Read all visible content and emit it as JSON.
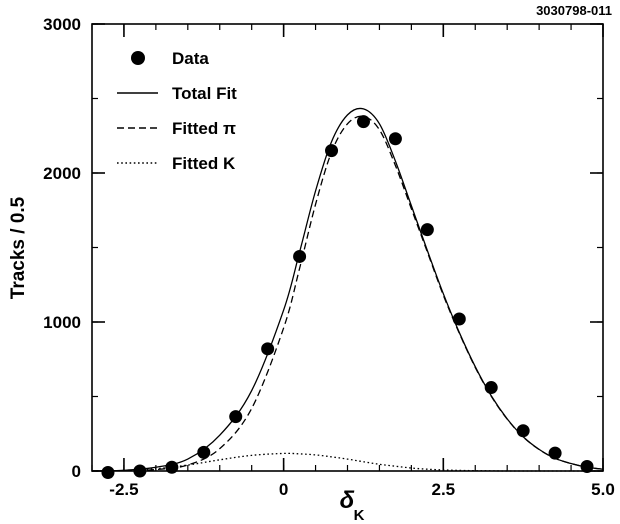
{
  "chart_data": {
    "type": "scatter",
    "figure_id": "3030798-011",
    "ylabel": "Tracks / 0.5",
    "xlabel_main": "δ",
    "xlabel_sub": "K",
    "xlim": [
      -3.0,
      5.0
    ],
    "ylim": [
      0,
      3000
    ],
    "x_ticks": [
      {
        "value": -2.5,
        "label": "-2.5"
      },
      {
        "value": 0.0,
        "label": "0"
      },
      {
        "value": 2.5,
        "label": "2.5"
      },
      {
        "value": 5.0,
        "label": "5.0"
      }
    ],
    "y_ticks": [
      {
        "value": 0,
        "label": "0"
      },
      {
        "value": 1000,
        "label": "1000"
      },
      {
        "value": 2000,
        "label": "2000"
      },
      {
        "value": 3000,
        "label": "3000"
      }
    ],
    "x_minor_step": 0.5,
    "y_minor_step": 500,
    "legend": {
      "position": "top-left",
      "entries": [
        {
          "label": "Data",
          "style": "marker"
        },
        {
          "label": "Total Fit",
          "style": "solid"
        },
        {
          "label": "Fitted π",
          "style": "dashed"
        },
        {
          "label": "Fitted K",
          "style": "dotted"
        }
      ]
    },
    "series": [
      {
        "name": "Data",
        "style": "marker",
        "x": [
          -2.75,
          -2.25,
          -1.75,
          -1.25,
          -0.75,
          -0.25,
          0.25,
          0.75,
          1.25,
          1.75,
          2.25,
          2.75,
          3.25,
          3.75,
          4.25,
          4.75
        ],
        "y": [
          -10,
          0,
          25,
          125,
          365,
          820,
          1440,
          2150,
          2345,
          2230,
          1620,
          1020,
          560,
          270,
          120,
          30
        ]
      },
      {
        "name": "Total Fit",
        "style": "solid",
        "x": [
          -3.0,
          -2.5,
          -2.0,
          -1.5,
          -1.0,
          -0.5,
          0.0,
          0.25,
          0.5,
          0.75,
          1.0,
          1.25,
          1.5,
          1.75,
          2.0,
          2.25,
          2.5,
          2.75,
          3.0,
          3.25,
          3.5,
          3.75,
          4.0,
          4.25,
          4.5,
          4.75,
          5.0
        ],
        "y": [
          0,
          5,
          25,
          80,
          240,
          540,
          1080,
          1470,
          1880,
          2210,
          2390,
          2430,
          2330,
          2080,
          1780,
          1480,
          1190,
          930,
          700,
          505,
          350,
          230,
          145,
          85,
          50,
          25,
          12
        ]
      },
      {
        "name": "Fitted π",
        "style": "dashed",
        "x": [
          -3.0,
          -2.5,
          -2.0,
          -1.5,
          -1.0,
          -0.5,
          0.0,
          0.25,
          0.5,
          0.75,
          1.0,
          1.25,
          1.5,
          1.75,
          2.0,
          2.25,
          2.5,
          2.75,
          3.0,
          3.25,
          3.5,
          3.75,
          4.0,
          4.25,
          4.5,
          4.75,
          5.0
        ],
        "y": [
          0,
          2,
          10,
          40,
          150,
          420,
          960,
          1360,
          1790,
          2140,
          2330,
          2380,
          2290,
          2050,
          1760,
          1470,
          1180,
          925,
          695,
          502,
          348,
          229,
          144,
          85,
          50,
          25,
          12
        ]
      },
      {
        "name": "Fitted K",
        "style": "dotted",
        "x": [
          -3.0,
          -2.5,
          -2.0,
          -1.5,
          -1.0,
          -0.5,
          0.0,
          0.25,
          0.5,
          0.75,
          1.0,
          1.25,
          1.5,
          1.75,
          2.0,
          2.25,
          2.5,
          2.75,
          3.0,
          3.25,
          3.5,
          4.0,
          5.0
        ],
        "y": [
          0,
          3,
          15,
          40,
          75,
          105,
          118,
          115,
          108,
          95,
          80,
          62,
          45,
          32,
          20,
          12,
          7,
          4,
          2,
          1,
          0,
          0,
          0
        ]
      }
    ]
  }
}
